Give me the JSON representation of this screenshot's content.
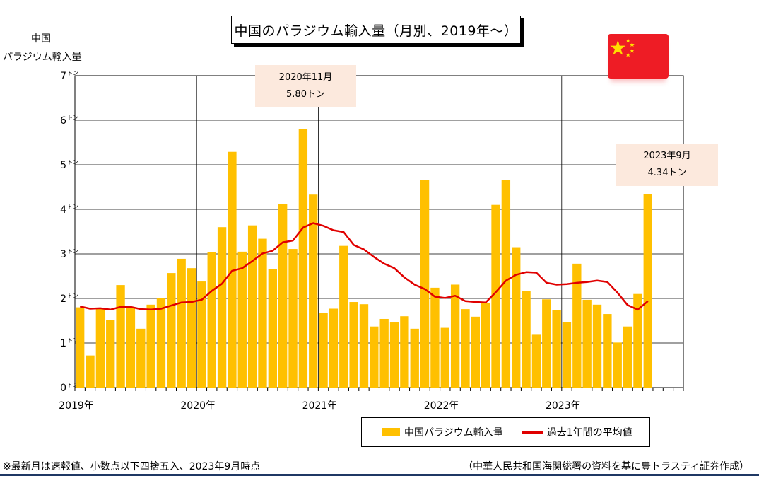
{
  "chart_data": {
    "type": "bar",
    "title": "中国のパラジウム輸入量（月別、2019年～）",
    "ylabel_lines": [
      "中国",
      "パラジウム輸入量"
    ],
    "ylim": [
      0,
      7
    ],
    "y_ticks": [
      {
        "value": 0,
        "num": "0",
        "unit": "トン"
      },
      {
        "value": 1,
        "num": "1",
        "unit": "トン"
      },
      {
        "value": 2,
        "num": "2",
        "unit": "トン"
      },
      {
        "value": 3,
        "num": "3",
        "unit": "トン"
      },
      {
        "value": 4,
        "num": "4",
        "unit": "トン"
      },
      {
        "value": 5,
        "num": "5",
        "unit": "トン"
      },
      {
        "value": 6,
        "num": "6",
        "unit": "トン"
      },
      {
        "value": 7,
        "num": "7",
        "unit": "トン"
      }
    ],
    "x_start": "2019-01",
    "x_end": "2023-12",
    "year_labels": [
      "2019年",
      "2020年",
      "2021年",
      "2022年",
      "2023年"
    ],
    "grid": true,
    "legend_position": "bottom-right",
    "series": [
      {
        "name": "中国パラジウム輸入量",
        "type": "bar",
        "color": "#ffc000",
        "values": [
          1.8,
          0.72,
          1.77,
          1.52,
          2.3,
          1.8,
          1.32,
          1.86,
          2.01,
          2.57,
          2.89,
          2.68,
          2.38,
          3.04,
          3.6,
          5.29,
          3.05,
          3.64,
          3.34,
          2.66,
          4.12,
          3.11,
          5.8,
          4.33,
          1.68,
          1.77,
          3.18,
          1.92,
          1.87,
          1.37,
          1.54,
          1.46,
          1.6,
          1.32,
          4.66,
          2.24,
          1.34,
          2.31,
          1.76,
          1.59,
          1.9,
          4.1,
          4.66,
          3.15,
          2.17,
          1.2,
          1.98,
          1.74,
          1.47,
          2.78,
          1.97,
          1.86,
          1.65,
          1.01,
          1.37,
          2.1,
          4.34
        ]
      },
      {
        "name": "過去1年間の平均値",
        "type": "line",
        "color": "#e00000",
        "values": [
          1.82,
          1.77,
          1.78,
          1.75,
          1.81,
          1.81,
          1.76,
          1.75,
          1.77,
          1.84,
          1.91,
          1.92,
          1.97,
          2.17,
          2.33,
          2.62,
          2.68,
          2.84,
          3.01,
          3.07,
          3.26,
          3.3,
          3.59,
          3.69,
          3.63,
          3.53,
          3.49,
          3.2,
          3.1,
          2.93,
          2.78,
          2.68,
          2.47,
          2.31,
          2.21,
          2.04,
          2.01,
          2.06,
          1.94,
          1.92,
          1.91,
          2.14,
          2.4,
          2.53,
          2.59,
          2.58,
          2.35,
          2.31,
          2.32,
          2.35,
          2.37,
          2.4,
          2.37,
          2.13,
          1.85,
          1.75,
          1.94
        ]
      }
    ],
    "annotations": [
      {
        "line1": "2020年11月",
        "line2": "5.80トン"
      },
      {
        "line1": "2023年9月",
        "line2": "4.34トン"
      }
    ]
  },
  "footnote_left": "※最新月は速報値、小数点以下四捨五入、2023年9月時点",
  "footnote_right": "（中華人民共和国海関総署の資料を基に豊トラスティ証券作成）",
  "flag_icon": "china-flag-icon"
}
